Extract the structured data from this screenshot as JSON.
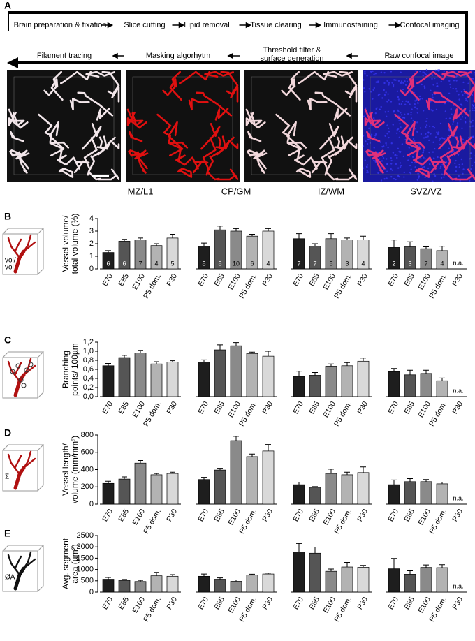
{
  "panel_a": {
    "letter": "A",
    "steps_top": [
      "Brain preparation & fixation",
      "Slice cutting",
      "Lipid removal",
      "Tissue clearing",
      "Immunostaining",
      "Confocal imaging"
    ],
    "steps_bottom": [
      "Filament tracing",
      "Masking algorhytm",
      [
        "Threshold filter &",
        "surface generation"
      ],
      "Raw confocal image"
    ]
  },
  "chart_data": [
    {
      "type": "bar",
      "panel": "B",
      "ylabel": [
        "Vessel volume/",
        "total volume (%)"
      ],
      "icon_label": [
        "vol/",
        "vol"
      ],
      "categories": [
        "E70",
        "E85",
        "E100",
        "P5 dom.",
        "P30"
      ],
      "colors": [
        "#1e1e1e",
        "#555555",
        "#8a8a8a",
        "#b3b3b3",
        "#d9d9d9"
      ],
      "ylim": [
        0,
        4
      ],
      "yticks": [
        0,
        1,
        2,
        3,
        4
      ],
      "na_label": "n.a.",
      "groups": [
        {
          "name": "MZ/L1",
          "values": [
            1.3,
            2.2,
            2.3,
            1.85,
            2.45
          ],
          "errors": [
            0.15,
            0.15,
            0.15,
            0.15,
            0.3
          ],
          "n_labels": [
            6,
            6,
            7,
            4,
            5
          ]
        },
        {
          "name": "CP/GM",
          "values": [
            1.8,
            3.1,
            3.0,
            2.6,
            3.0
          ],
          "errors": [
            0.25,
            0.3,
            0.2,
            0.15,
            0.2
          ],
          "n_labels": [
            8,
            8,
            10,
            6,
            4
          ]
        },
        {
          "name": "IZ/WM",
          "values": [
            2.4,
            1.8,
            2.4,
            2.3,
            2.3
          ],
          "errors": [
            0.4,
            0.2,
            0.4,
            0.15,
            0.3
          ],
          "n_labels": [
            7,
            7,
            5,
            3,
            4
          ]
        },
        {
          "name": "SVZ/VZ",
          "values": [
            1.7,
            1.75,
            1.6,
            1.45,
            null
          ],
          "errors": [
            0.6,
            0.4,
            0.15,
            0.35,
            null
          ],
          "n_labels": [
            2,
            3,
            7,
            4,
            null
          ]
        }
      ]
    },
    {
      "type": "bar",
      "panel": "C",
      "ylabel": [
        "Branching",
        "points/ 100µm"
      ],
      "categories": [
        "E70",
        "E85",
        "E100",
        "P5 dom.",
        "P30"
      ],
      "colors": [
        "#1e1e1e",
        "#555555",
        "#8a8a8a",
        "#b3b3b3",
        "#d9d9d9"
      ],
      "ylim": [
        0,
        1.2
      ],
      "yticks": [
        {
          "value": 0,
          "label": "0,0"
        },
        {
          "value": 0.2,
          "label": "0,2"
        },
        {
          "value": 0.4,
          "label": "0,4"
        },
        {
          "value": 0.6,
          "label": "0,6"
        },
        {
          "value": 0.8,
          "label": "0,8"
        },
        {
          "value": 1.0,
          "label": "1,0"
        },
        {
          "value": 1.2,
          "label": "1,2"
        }
      ],
      "na_label": "n.a.",
      "groups": [
        {
          "values": [
            0.68,
            0.86,
            0.96,
            0.72,
            0.76
          ],
          "errors": [
            0.05,
            0.05,
            0.06,
            0.05,
            0.03
          ]
        },
        {
          "values": [
            0.76,
            1.03,
            1.12,
            0.95,
            0.89
          ],
          "errors": [
            0.05,
            0.11,
            0.07,
            0.03,
            0.11
          ]
        },
        {
          "values": [
            0.44,
            0.47,
            0.67,
            0.68,
            0.78
          ],
          "errors": [
            0.12,
            0.06,
            0.05,
            0.07,
            0.07
          ]
        },
        {
          "values": [
            0.55,
            0.48,
            0.51,
            0.35,
            null
          ],
          "errors": [
            0.07,
            0.1,
            0.07,
            0.06,
            null
          ]
        }
      ]
    },
    {
      "type": "bar",
      "panel": "D",
      "ylabel": [
        "Vessel length/",
        "volume (mm/mm³)"
      ],
      "icon_label": [
        "Σ"
      ],
      "categories": [
        "E70",
        "E85",
        "E100",
        "P5 dom.",
        "P30"
      ],
      "colors": [
        "#1e1e1e",
        "#555555",
        "#8a8a8a",
        "#b3b3b3",
        "#d9d9d9"
      ],
      "ylim": [
        0,
        800
      ],
      "yticks": [
        0,
        200,
        400,
        600,
        800
      ],
      "na_label": "n.a.",
      "groups": [
        {
          "values": [
            240,
            290,
            475,
            340,
            355
          ],
          "errors": [
            25,
            25,
            30,
            15,
            15
          ]
        },
        {
          "values": [
            285,
            395,
            735,
            550,
            615
          ],
          "errors": [
            25,
            20,
            50,
            30,
            75
          ]
        },
        {
          "values": [
            225,
            195,
            355,
            340,
            365
          ],
          "errors": [
            30,
            8,
            50,
            30,
            65
          ]
        },
        {
          "values": [
            225,
            260,
            260,
            235,
            null
          ],
          "errors": [
            55,
            35,
            25,
            20,
            null
          ]
        }
      ]
    },
    {
      "type": "bar",
      "panel": "E",
      "ylabel": [
        "Avg. segment",
        "area (µm²)"
      ],
      "icon_label": [
        "ØA"
      ],
      "categories": [
        "E70",
        "E85",
        "E100",
        "P5 dom.",
        "P30"
      ],
      "colors": [
        "#1e1e1e",
        "#555555",
        "#8a8a8a",
        "#b3b3b3",
        "#d9d9d9"
      ],
      "ylim": [
        0,
        2500
      ],
      "yticks": [
        0,
        500,
        1000,
        1500,
        2000,
        2500
      ],
      "na_label": "n.a.",
      "groups": [
        {
          "values": [
            570,
            520,
            470,
            720,
            700
          ],
          "errors": [
            80,
            40,
            50,
            150,
            70
          ]
        },
        {
          "values": [
            700,
            570,
            480,
            750,
            800
          ],
          "errors": [
            100,
            60,
            60,
            40,
            40
          ]
        },
        {
          "values": [
            1770,
            1720,
            920,
            1110,
            1100
          ],
          "errors": [
            380,
            270,
            100,
            200,
            80
          ]
        },
        {
          "values": [
            1030,
            790,
            1090,
            1080,
            null
          ],
          "errors": [
            460,
            150,
            110,
            130,
            null
          ]
        }
      ]
    }
  ]
}
